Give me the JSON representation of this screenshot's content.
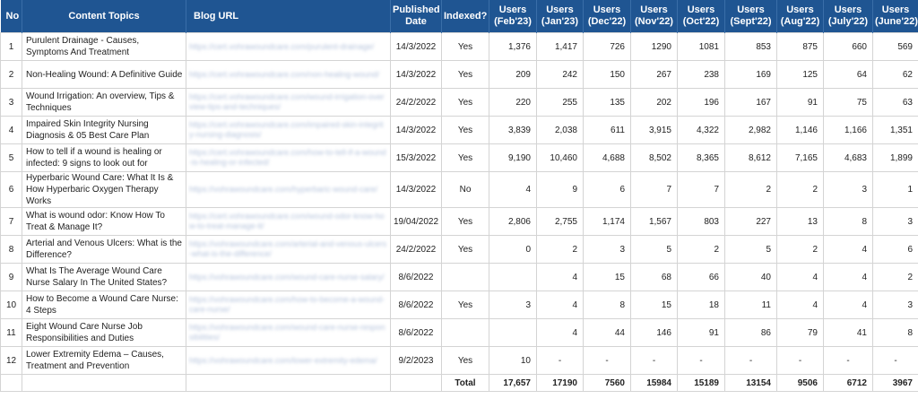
{
  "headers": {
    "no": "No",
    "topic": "Content Topics",
    "url": "Blog URL",
    "date": "Published Date",
    "indexed": "Indexed?",
    "months": [
      "Users (Feb'23)",
      "Users (Jan'23)",
      "Users (Dec'22)",
      "Users (Nov'22)",
      "Users (Oct'22)",
      "Users (Sept'22)",
      "Users (Aug'22)",
      "Users (July'22)",
      "Users (June'22)"
    ]
  },
  "rows": [
    {
      "no": "1",
      "topic": "Purulent Drainage - Causes, Symptoms And Treatment",
      "url": "https://cert.vohrawoundcare.com/purulent-drainage/",
      "date": "14/3/2022",
      "indexed": "Yes",
      "values": [
        "1,376",
        "1,417",
        "726",
        "1290",
        "1081",
        "853",
        "875",
        "660",
        "569"
      ]
    },
    {
      "no": "2",
      "topic": "Non-Healing Wound: A Definitive Guide",
      "url": "https://cert.vohrawoundcare.com/non-healing-wound/",
      "date": "14/3/2022",
      "indexed": "Yes",
      "values": [
        "209",
        "242",
        "150",
        "267",
        "238",
        "169",
        "125",
        "64",
        "62"
      ]
    },
    {
      "no": "3",
      "topic": "Wound Irrigation: An overview, Tips & Techniques",
      "url": "https://cert.vohrawoundcare.com/wound-irrigation-overview-tips-and-techniques/",
      "date": "24/2/2022",
      "indexed": "Yes",
      "values": [
        "220",
        "255",
        "135",
        "202",
        "196",
        "167",
        "91",
        "75",
        "63"
      ]
    },
    {
      "no": "4",
      "topic": "Impaired Skin Integrity Nursing Diagnosis & 05 Best Care Plan",
      "url": "https://cert.vohrawoundcare.com/impaired-skin-integrity-nursing-diagnosis/",
      "date": "14/3/2022",
      "indexed": "Yes",
      "values": [
        "3,839",
        "2,038",
        "611",
        "3,915",
        "4,322",
        "2,982",
        "1,146",
        "1,166",
        "1,351"
      ]
    },
    {
      "no": "5",
      "topic": "How to tell if a wound is healing or infected: 9 signs to look out for",
      "url": "https://cert.vohrawoundcare.com/how-to-tell-if-a-wound-is-healing-or-infected/",
      "date": "15/3/2022",
      "indexed": "Yes",
      "values": [
        "9,190",
        "10,460",
        "4,688",
        "8,502",
        "8,365",
        "8,612",
        "7,165",
        "4,683",
        "1,899"
      ]
    },
    {
      "no": "6",
      "topic": "Hyperbaric Wound Care: What It Is & How Hyperbaric Oxygen Therapy Works",
      "url": "https://vohrawoundcare.com/hyperbaric-wound-care/",
      "date": "14/3/2022",
      "indexed": "No",
      "values": [
        "4",
        "9",
        "6",
        "7",
        "7",
        "2",
        "2",
        "3",
        "1"
      ]
    },
    {
      "no": "7",
      "topic": "What is wound odor: Know How To Treat & Manage It?",
      "url": "https://cert.vohrawoundcare.com/wound-odor-know-how-to-treat-manage-it/",
      "date": "19/04/2022",
      "indexed": "Yes",
      "values": [
        "2,806",
        "2,755",
        "1,174",
        "1,567",
        "803",
        "227",
        "13",
        "8",
        "3"
      ]
    },
    {
      "no": "8",
      "topic": "Arterial and Venous Ulcers: What is the Difference?",
      "url": "https://vohrawoundcare.com/arterial-and-venous-ulcers-what-is-the-difference/",
      "date": "24/2/2022",
      "indexed": "Yes",
      "values": [
        "0",
        "2",
        "3",
        "5",
        "2",
        "5",
        "2",
        "4",
        "6"
      ]
    },
    {
      "no": "9",
      "topic": "What Is The Average Wound Care Nurse Salary In The United States?",
      "url": "https://vohrawoundcare.com/wound-care-nurse-salary/",
      "date": "8/6/2022",
      "indexed": "",
      "values": [
        "",
        "4",
        "15",
        "68",
        "66",
        "40",
        "4",
        "4",
        "2"
      ]
    },
    {
      "no": "10",
      "topic": "How to Become a Wound Care Nurse: 4 Steps",
      "url": "https://vohrawoundcare.com/how-to-become-a-wound-care-nurse/",
      "date": "8/6/2022",
      "indexed": "Yes",
      "values": [
        "3",
        "4",
        "8",
        "15",
        "18",
        "11",
        "4",
        "4",
        "3"
      ]
    },
    {
      "no": "11",
      "topic": "Eight Wound Care Nurse Job Responsibilities and Duties",
      "url": "https://vohrawoundcare.com/wound-care-nurse-responsibilities/",
      "date": "8/6/2022",
      "indexed": "",
      "values": [
        "",
        "4",
        "44",
        "146",
        "91",
        "86",
        "79",
        "41",
        "8"
      ]
    },
    {
      "no": "12",
      "topic": "Lower Extremity Edema – Causes, Treatment and Prevention",
      "url": "https://vohrawoundcare.com/lower-extremity-edema/",
      "date": "9/2/2023",
      "indexed": "Yes",
      "values": [
        "10",
        "-",
        "-",
        "-",
        "-",
        "-",
        "-",
        "-",
        "-"
      ]
    }
  ],
  "total": {
    "label": "Total",
    "values": [
      "17,657",
      "17190",
      "7560",
      "15984",
      "15189",
      "13154",
      "9506",
      "6712",
      "3967"
    ]
  }
}
